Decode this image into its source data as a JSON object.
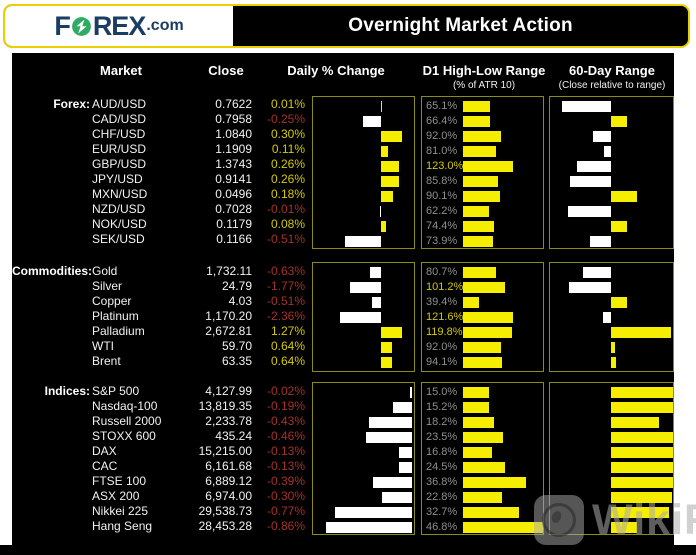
{
  "header": {
    "logo": {
      "f": "F",
      "rex": "REX",
      "dotcom": ".com"
    },
    "title": "Overnight Market Action"
  },
  "columns": {
    "market": "Market",
    "close": "Close",
    "daily": "Daily % Change",
    "d1": "D1 High-Low Range",
    "d1_sub": "(% of ATR 10)",
    "range60": "60-Day Range",
    "range60_sub": "(Close relative to range)"
  },
  "colors": {
    "background": "#000000",
    "page": "#ffffff",
    "header_border": "#e9d100",
    "box_border": "#8b8b1a",
    "bar_positive": "#f6ee00",
    "bar_negative": "#ffffff",
    "text_positive": "#d4c900",
    "text_negative": "#a5312a",
    "text_muted": "#8f8f8f",
    "logo_navy": "#1b3d63",
    "logo_green": "#2fab63"
  },
  "chart_data": {
    "type": "table",
    "title": "Overnight Market Action",
    "notes": "Daily % change bars: yellow = positive (right of axis), white = negative (left of axis). D1 High-Low Range bars sized as % of 10-day ATR. 60-Day Range bars show close position relative to the middle of the 60-day range.",
    "sections": [
      {
        "label": "Forex:",
        "render": {
          "daily_axis_pct": 67,
          "daily_scale_pct_per_unit": 69,
          "d1_full_scale": 195,
          "range_axis_pct": 49.5
        },
        "rows": [
          {
            "market": "AUD/USD",
            "close": "0.7622",
            "daily_change_pct": 0.01,
            "daily_label": "0.01%",
            "d1_atr_pct": 65.1,
            "d1_label": "65.1%",
            "close_in_60d_range_pct": 10
          },
          {
            "market": "CAD/USD",
            "close": "0.7958",
            "daily_change_pct": -0.25,
            "daily_label": "-0.25%",
            "d1_atr_pct": 66.4,
            "d1_label": "66.4%",
            "close_in_60d_range_pct": 63
          },
          {
            "market": "CHF/USD",
            "close": "1.0840",
            "daily_change_pct": 0.3,
            "daily_label": "0.30%",
            "d1_atr_pct": 92.0,
            "d1_label": "92.0%",
            "close_in_60d_range_pct": 35
          },
          {
            "market": "EUR/USD",
            "close": "1.1909",
            "daily_change_pct": 0.11,
            "daily_label": "0.11%",
            "d1_atr_pct": 81.0,
            "d1_label": "81.0%",
            "close_in_60d_range_pct": 43.5
          },
          {
            "market": "GBP/USD",
            "close": "1.3743",
            "daily_change_pct": 0.26,
            "daily_label": "0.26%",
            "d1_atr_pct": 123.0,
            "d1_label": "123.0%",
            "close_in_60d_range_pct": 22
          },
          {
            "market": "JPY/USD",
            "close": "0.9141",
            "daily_change_pct": 0.26,
            "daily_label": "0.26%",
            "d1_atr_pct": 85.8,
            "d1_label": "85.8%",
            "close_in_60d_range_pct": 16
          },
          {
            "market": "MXN/USD",
            "close": "0.0496",
            "daily_change_pct": 0.18,
            "daily_label": "0.18%",
            "d1_atr_pct": 90.1,
            "d1_label": "90.1%",
            "close_in_60d_range_pct": 71
          },
          {
            "market": "NZD/USD",
            "close": "0.7028",
            "daily_change_pct": -0.01,
            "daily_label": "-0.01%",
            "d1_atr_pct": 62.2,
            "d1_label": "62.2%",
            "close_in_60d_range_pct": 15
          },
          {
            "market": "NOK/USD",
            "close": "0.1179",
            "daily_change_pct": 0.08,
            "daily_label": "0.08%",
            "d1_atr_pct": 74.4,
            "d1_label": "74.4%",
            "close_in_60d_range_pct": 63
          },
          {
            "market": "SEK/USD",
            "close": "0.1166",
            "daily_change_pct": -0.51,
            "daily_label": "-0.51%",
            "d1_atr_pct": 73.9,
            "d1_label": "73.9%",
            "close_in_60d_range_pct": 32.5
          }
        ]
      },
      {
        "label": "Commodities:",
        "render": {
          "daily_axis_pct": 67,
          "daily_scale_pct_per_unit": 17,
          "d1_full_scale": 195,
          "range_axis_pct": 49.5
        },
        "rows": [
          {
            "market": "Gold",
            "close": "1,732.11",
            "daily_change_pct": -0.63,
            "daily_label": "-0.63%",
            "d1_atr_pct": 80.7,
            "d1_label": "80.7%",
            "close_in_60d_range_pct": 27
          },
          {
            "market": "Silver",
            "close": "24.79",
            "daily_change_pct": -1.77,
            "daily_label": "-1.77%",
            "d1_atr_pct": 101.2,
            "d1_label": "101.2%",
            "close_in_60d_range_pct": 15.5
          },
          {
            "market": "Copper",
            "close": "4.03",
            "daily_change_pct": -0.51,
            "daily_label": "-0.51%",
            "d1_atr_pct": 39.4,
            "d1_label": "39.4%",
            "close_in_60d_range_pct": 63
          },
          {
            "market": "Platinum",
            "close": "1,170.20",
            "daily_change_pct": -2.36,
            "daily_label": "-2.36%",
            "d1_atr_pct": 121.6,
            "d1_label": "121.6%",
            "close_in_60d_range_pct": 43
          },
          {
            "market": "Palladium",
            "close": "2,672.81",
            "daily_change_pct": 1.27,
            "daily_label": "1.27%",
            "d1_atr_pct": 119.8,
            "d1_label": "119.8%",
            "close_in_60d_range_pct": 98.5
          },
          {
            "market": "WTI",
            "close": "59.70",
            "daily_change_pct": 0.64,
            "daily_label": "0.64%",
            "d1_atr_pct": 92.0,
            "d1_label": "92.0%",
            "close_in_60d_range_pct": 52.5
          },
          {
            "market": "Brent",
            "close": "63.35",
            "daily_change_pct": 0.64,
            "daily_label": "0.64%",
            "d1_atr_pct": 94.1,
            "d1_label": "94.1%",
            "close_in_60d_range_pct": 53.5
          }
        ]
      },
      {
        "label": "Indices:",
        "render": {
          "daily_axis_pct": 98,
          "daily_scale_pct_per_unit": 99,
          "d1_full_scale": 47,
          "range_axis_pct": 49.5
        },
        "rows": [
          {
            "market": "S&P 500",
            "close": "4,127.99",
            "daily_change_pct": -0.02,
            "daily_label": "-0.02%",
            "d1_atr_pct": 15.0,
            "d1_label": "15.0%",
            "close_in_60d_range_pct": 100
          },
          {
            "market": "Nasdaq-100",
            "close": "13,819.35",
            "daily_change_pct": -0.19,
            "daily_label": "-0.19%",
            "d1_atr_pct": 15.2,
            "d1_label": "15.2%",
            "close_in_60d_range_pct": 100
          },
          {
            "market": "Russell 2000",
            "close": "2,233.78",
            "daily_change_pct": -0.43,
            "daily_label": "-0.43%",
            "d1_atr_pct": 18.2,
            "d1_label": "18.2%",
            "close_in_60d_range_pct": 89
          },
          {
            "market": "STOXX 600",
            "close": "435.24",
            "daily_change_pct": -0.46,
            "daily_label": "-0.46%",
            "d1_atr_pct": 23.5,
            "d1_label": "23.5%",
            "close_in_60d_range_pct": 100
          },
          {
            "market": "DAX",
            "close": "15,215.00",
            "daily_change_pct": -0.13,
            "daily_label": "-0.13%",
            "d1_atr_pct": 16.8,
            "d1_label": "16.8%",
            "close_in_60d_range_pct": 100
          },
          {
            "market": "CAC",
            "close": "6,161.68",
            "daily_change_pct": -0.13,
            "daily_label": "-0.13%",
            "d1_atr_pct": 24.5,
            "d1_label": "24.5%",
            "close_in_60d_range_pct": 100
          },
          {
            "market": "FTSE 100",
            "close": "6,889.12",
            "daily_change_pct": -0.39,
            "daily_label": "-0.39%",
            "d1_atr_pct": 36.8,
            "d1_label": "36.8%",
            "close_in_60d_range_pct": 100
          },
          {
            "market": "ASX 200",
            "close": "6,974.00",
            "daily_change_pct": -0.3,
            "daily_label": "-0.30%",
            "d1_atr_pct": 22.8,
            "d1_label": "22.8%",
            "close_in_60d_range_pct": 99
          },
          {
            "market": "Nikkei 225",
            "close": "29,538.73",
            "daily_change_pct": -0.77,
            "daily_label": "-0.77%",
            "d1_atr_pct": 32.7,
            "d1_label": "32.7%",
            "close_in_60d_range_pct": 97
          },
          {
            "market": "Hang Seng",
            "close": "28,453.28",
            "daily_change_pct": -0.86,
            "daily_label": "-0.86%",
            "d1_atr_pct": 46.8,
            "d1_label": "46.8%",
            "close_in_60d_range_pct": 70.5
          }
        ]
      }
    ]
  },
  "watermark": {
    "text": "WikiFX"
  }
}
